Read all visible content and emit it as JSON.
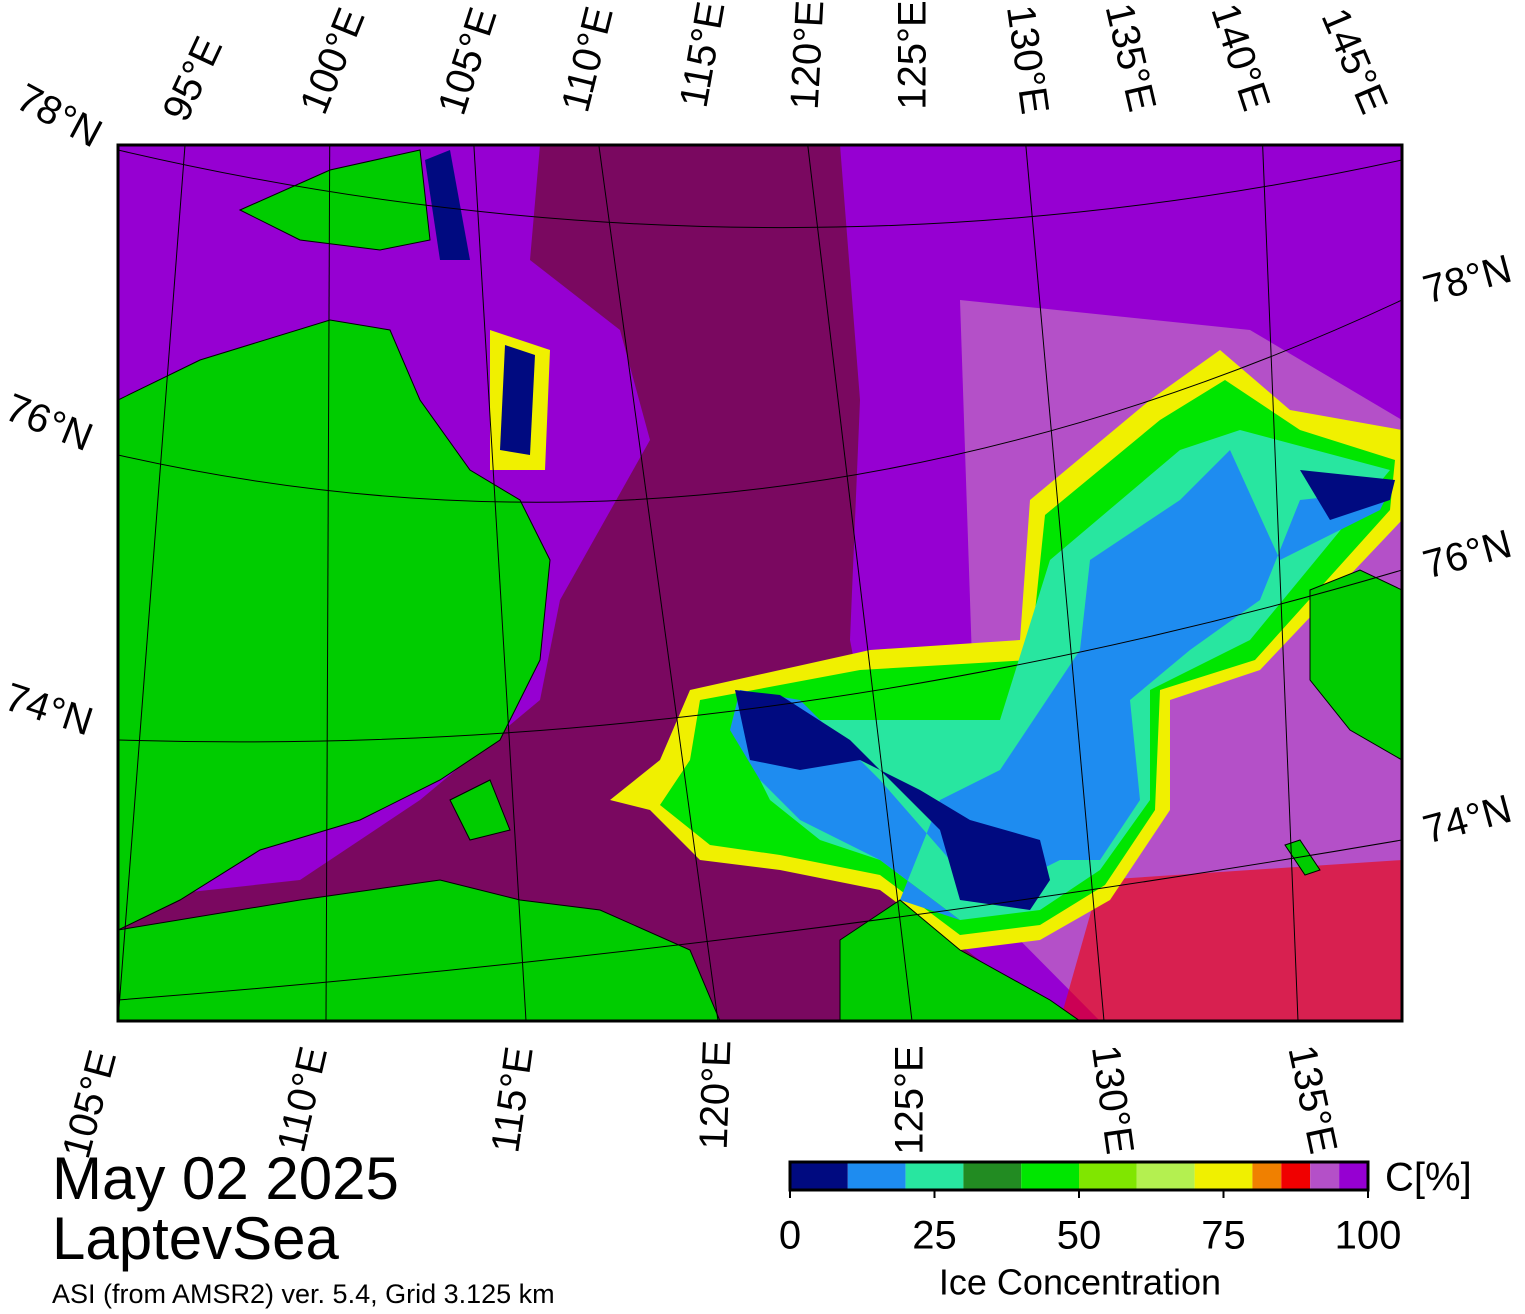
{
  "map": {
    "top_labels": [
      "95°E",
      "100°E",
      "105°E",
      "110°E",
      "115°E",
      "120°E",
      "125°E",
      "130°E",
      "135°E",
      "140°E",
      "145°E"
    ],
    "bottom_labels": [
      "105°E",
      "110°E",
      "115°E",
      "120°E",
      "125°E",
      "130°E",
      "135°E"
    ],
    "left_labels": [
      "78°N",
      "76°N",
      "74°N"
    ],
    "right_labels": [
      "78°N",
      "76°N",
      "74°N"
    ]
  },
  "caption": {
    "date": "May 02 2025",
    "region": "LaptevSea",
    "source": "ASI (from AMSR2) ver. 5.4,  Grid 3.125 km"
  },
  "colorbar": {
    "label": "Ice Concentration",
    "unit": "C[%]",
    "range": [
      0,
      100
    ],
    "bins": [
      0,
      10,
      20,
      30,
      40,
      50,
      60,
      70,
      80,
      85,
      90,
      95,
      100
    ],
    "colors": [
      "#000a80",
      "#1e8cf0",
      "#28e6a0",
      "#228b22",
      "#00e600",
      "#80e600",
      "#b4f050",
      "#f0f000",
      "#f08000",
      "#f00000",
      "#b450c8",
      "#9600d2"
    ],
    "ticks": [
      0,
      25,
      50,
      75,
      100
    ]
  }
}
